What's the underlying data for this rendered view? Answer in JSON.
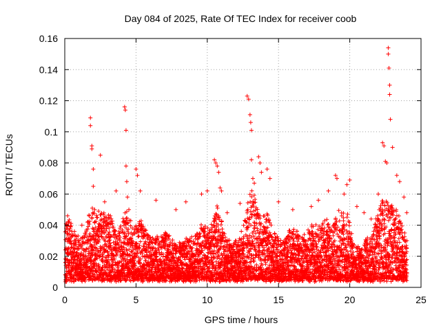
{
  "chart_data": {
    "type": "scatter",
    "title": "Day 084 of 2025, Rate Of TEC Index for receiver coob",
    "xlabel": "GPS time / hours",
    "ylabel": "ROTI / TECUs",
    "xlim": [
      0,
      25
    ],
    "ylim": [
      0,
      0.16
    ],
    "x_ticks": [
      0,
      5,
      10,
      15,
      20,
      25
    ],
    "x_tick_labels": [
      "0",
      "5",
      "10",
      "15",
      "20",
      "25"
    ],
    "y_ticks": [
      0,
      0.02,
      0.04,
      0.06,
      0.08,
      0.1,
      0.12,
      0.14,
      0.16
    ],
    "y_tick_labels": [
      "0",
      "0.02",
      "0.04",
      "0.06",
      "0.08",
      "0.1",
      "0.12",
      "0.14",
      "0.16"
    ],
    "grid": true,
    "marker": "+",
    "color": "#ff0000",
    "series": [
      {
        "name": "ROTI",
        "x": [
          0.1,
          0.2,
          0.3,
          0.5,
          0.8,
          1.2,
          1.8,
          1.8,
          1.9,
          1.9,
          2.0,
          2.0,
          2.1,
          2.1,
          2.5,
          2.8,
          3.2,
          3.6,
          4.2,
          4.25,
          4.3,
          4.3,
          4.35,
          4.4,
          4.5,
          5.0,
          5.1,
          5.3,
          6.4,
          7.8,
          8.5,
          9.6,
          10.0,
          10.5,
          10.6,
          10.7,
          10.8,
          10.9,
          11.0,
          11.4,
          12.3,
          12.8,
          12.9,
          13.0,
          13.05,
          13.1,
          13.1,
          13.2,
          13.3,
          13.6,
          13.7,
          13.8,
          14.2,
          14.4,
          15.0,
          16.0,
          17.3,
          17.8,
          18.5,
          19.0,
          19.1,
          19.6,
          19.8,
          20.0,
          20.5,
          21.0,
          21.5,
          22.0,
          22.3,
          22.4,
          22.5,
          22.6,
          22.7,
          22.7,
          22.75,
          22.8,
          22.8,
          22.85,
          23.0,
          23.3,
          23.5,
          23.8,
          24.0
        ],
        "y": [
          0.018,
          0.046,
          0.03,
          0.036,
          0.022,
          0.04,
          0.109,
          0.104,
          0.091,
          0.089,
          0.076,
          0.065,
          0.05,
          0.042,
          0.085,
          0.055,
          0.046,
          0.062,
          0.116,
          0.114,
          0.101,
          0.078,
          0.068,
          0.058,
          0.05,
          0.076,
          0.072,
          0.062,
          0.056,
          0.05,
          0.055,
          0.06,
          0.062,
          0.082,
          0.08,
          0.078,
          0.074,
          0.064,
          0.062,
          0.048,
          0.054,
          0.123,
          0.121,
          0.111,
          0.106,
          0.101,
          0.082,
          0.07,
          0.067,
          0.084,
          0.08,
          0.074,
          0.076,
          0.07,
          0.055,
          0.05,
          0.052,
          0.056,
          0.062,
          0.072,
          0.07,
          0.06,
          0.066,
          0.069,
          0.052,
          0.048,
          0.044,
          0.06,
          0.093,
          0.091,
          0.081,
          0.08,
          0.154,
          0.15,
          0.141,
          0.13,
          0.124,
          0.108,
          0.09,
          0.072,
          0.068,
          0.058,
          0.048
        ]
      }
    ]
  }
}
